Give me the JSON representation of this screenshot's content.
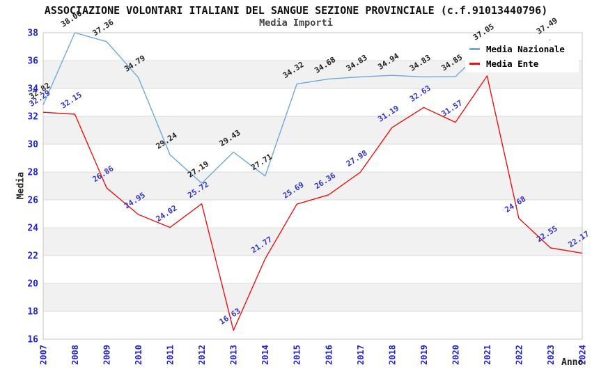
{
  "header": {
    "title": "ASSOCIAZIONE VOLONTARI ITALIANI DEL SANGUE SEZIONE PROVINCIALE (c.f.91013440796)",
    "subtitle": "Media Importi"
  },
  "legend": {
    "items": [
      {
        "label": "Media Nazionale",
        "color": "#6fa8dc"
      },
      {
        "label": "Media Ente",
        "color": "#ee1111"
      }
    ]
  },
  "axes": {
    "x_title": "Anno",
    "y_title": "Media"
  },
  "colors": {
    "tick": "#2222cc",
    "band": "#f1f1f1",
    "grid": "#dcdcdc",
    "border": "#c6c6c6",
    "background": "#ffffff"
  },
  "chart_data": {
    "type": "line",
    "title": "Media Importi",
    "xlabel": "Anno",
    "ylabel": "Media",
    "ylim": [
      16,
      38
    ],
    "yticks": [
      38,
      36,
      34,
      32,
      30,
      28,
      26,
      24,
      22,
      20,
      18,
      16
    ],
    "grid": "horizontal-bands",
    "legend_position": "top-right",
    "x": [
      "2007",
      "2008",
      "2009",
      "2010",
      "2011",
      "2012",
      "2013",
      "2014",
      "2015",
      "2016",
      "2017",
      "2018",
      "2019",
      "2020",
      "2021",
      "2022",
      "2023",
      "2024"
    ],
    "series": [
      {
        "name": "Media Nazionale",
        "color": "#6fa8dc",
        "label_color": "#222222",
        "values": [
          32.82,
          38.0,
          37.36,
          34.79,
          29.24,
          27.19,
          29.43,
          27.71,
          34.32,
          34.68,
          34.83,
          34.94,
          34.83,
          34.85,
          37.05,
          36.5,
          37.49,
          null
        ],
        "labels": [
          "32.82",
          "38.00",
          "37.36",
          "34.79",
          "29.24",
          "27.19",
          "29.43",
          "27.71",
          "34.32",
          "34.68",
          "34.83",
          "34.94",
          "34.83",
          "34.85",
          "37.05",
          "",
          "37.49",
          ""
        ]
      },
      {
        "name": "Media Ente",
        "color": "#ee1111",
        "label_color": "#3333cc",
        "values": [
          32.29,
          32.15,
          26.86,
          24.95,
          24.02,
          25.72,
          16.63,
          21.77,
          25.69,
          26.36,
          27.98,
          31.19,
          32.63,
          31.57,
          34.9,
          24.68,
          22.55,
          22.17
        ],
        "labels": [
          "32.29",
          "32.15",
          "26.86",
          "24.95",
          "24.02",
          "25.72",
          "16.63",
          "21.77",
          "25.69",
          "26.36",
          "27.98",
          "31.19",
          "32.63",
          "31.57",
          "",
          "24.68",
          "22.55",
          "22.17"
        ]
      }
    ]
  }
}
